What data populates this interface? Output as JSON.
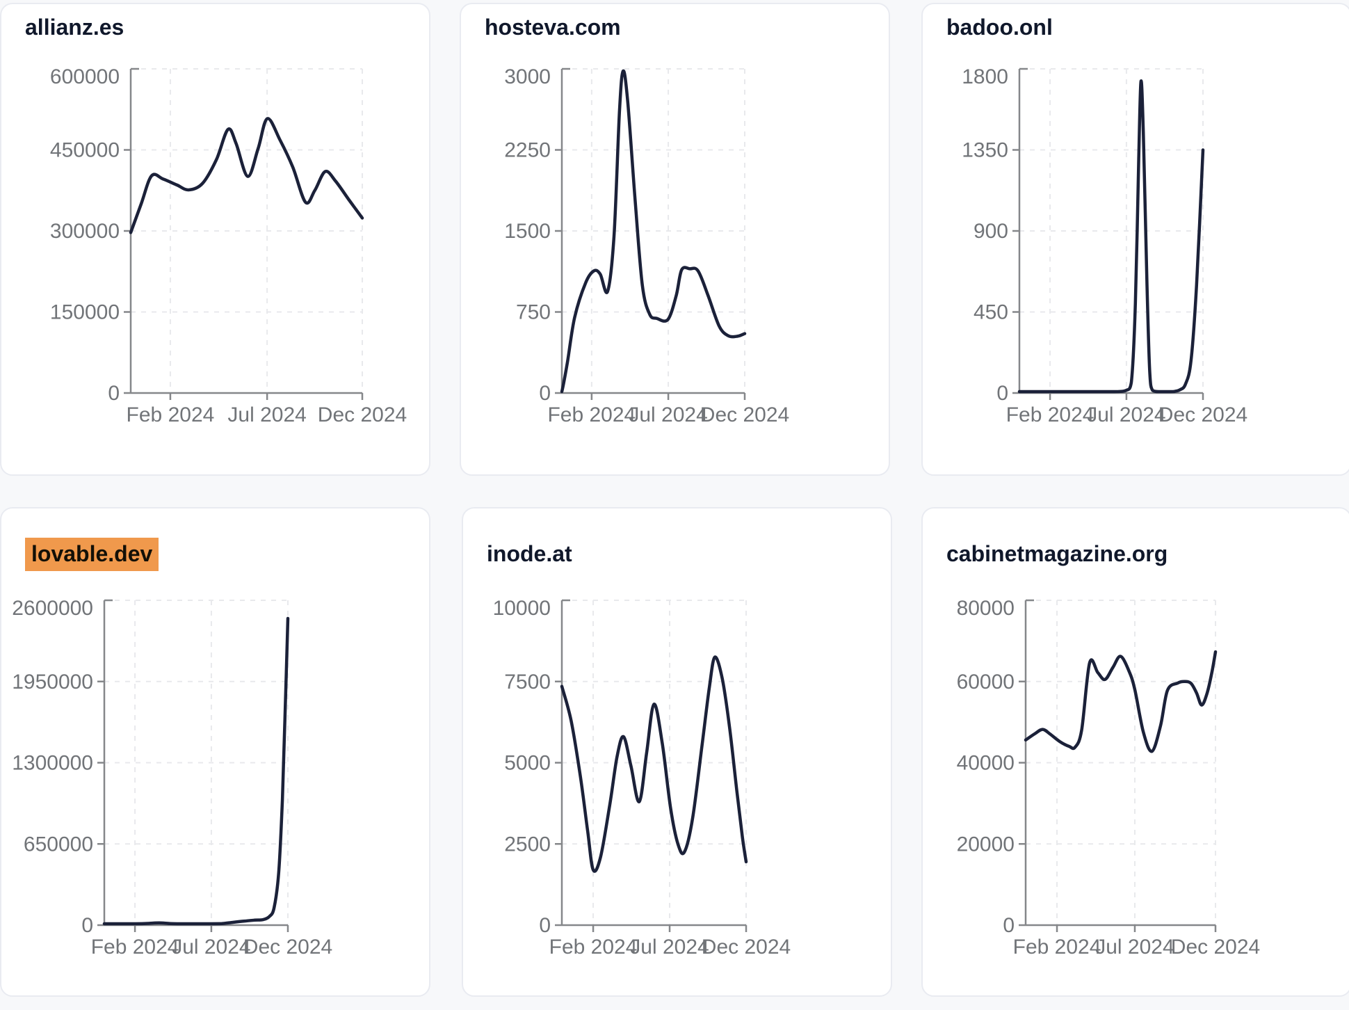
{
  "page": {
    "description": "Dashboard grid of six domain traffic line charts, Dec 2023 - Dec 2024",
    "colors": {
      "line": "#1b2139",
      "axis": "#85878a",
      "tick_label": "#717478",
      "grid": "#e8e9ec",
      "card_background": "#ffffff",
      "page_background": "#f7f8fa",
      "highlight_accent": "#f0994c",
      "title_text": "#10182b"
    }
  },
  "chart_data": [
    {
      "type": "line",
      "title": "allianz.es",
      "highlighted": false,
      "ylim": [
        0,
        600000
      ],
      "y_ticks": [
        0,
        150000,
        300000,
        450000,
        600000
      ],
      "x_ticks": [
        {
          "label": "Feb 2024",
          "t": 0.171
        },
        {
          "label": "Jul 2024",
          "t": 0.589
        },
        {
          "label": "Dec 2024",
          "t": 1.0
        }
      ],
      "grid": true,
      "legend": "none",
      "points": [
        [
          0,
          297000
        ],
        [
          0.045,
          350000
        ],
        [
          0.09,
          402000
        ],
        [
          0.14,
          396000
        ],
        [
          0.2,
          385000
        ],
        [
          0.25,
          376000
        ],
        [
          0.31,
          388000
        ],
        [
          0.37,
          432000
        ],
        [
          0.42,
          488000
        ],
        [
          0.455,
          462000
        ],
        [
          0.505,
          401000
        ],
        [
          0.55,
          452000
        ],
        [
          0.59,
          508000
        ],
        [
          0.645,
          468000
        ],
        [
          0.7,
          418000
        ],
        [
          0.755,
          353000
        ],
        [
          0.795,
          375000
        ],
        [
          0.84,
          410000
        ],
        [
          0.885,
          392000
        ],
        [
          0.945,
          356000
        ],
        [
          1,
          324000
        ]
      ]
    },
    {
      "type": "line",
      "title": "hosteva.com",
      "highlighted": false,
      "ylim": [
        0,
        3000
      ],
      "y_ticks": [
        0,
        750,
        1500,
        2250,
        3000
      ],
      "x_ticks": [
        {
          "label": "Feb 2024",
          "t": 0.163
        },
        {
          "label": "Jul 2024",
          "t": 0.582
        },
        {
          "label": "Dec 2024",
          "t": 1.0
        }
      ],
      "grid": true,
      "legend": "none",
      "points": [
        [
          0,
          0
        ],
        [
          0.03,
          280
        ],
        [
          0.07,
          700
        ],
        [
          0.13,
          1020
        ],
        [
          0.175,
          1130
        ],
        [
          0.21,
          1100
        ],
        [
          0.25,
          940
        ],
        [
          0.285,
          1450
        ],
        [
          0.315,
          2600
        ],
        [
          0.335,
          2980
        ],
        [
          0.36,
          2700
        ],
        [
          0.4,
          1800
        ],
        [
          0.44,
          1000
        ],
        [
          0.48,
          730
        ],
        [
          0.52,
          690
        ],
        [
          0.58,
          680
        ],
        [
          0.625,
          900
        ],
        [
          0.655,
          1140
        ],
        [
          0.7,
          1150
        ],
        [
          0.745,
          1130
        ],
        [
          0.8,
          900
        ],
        [
          0.86,
          620
        ],
        [
          0.91,
          530
        ],
        [
          0.96,
          525
        ],
        [
          1,
          550
        ]
      ]
    },
    {
      "type": "line",
      "title": "badoo.onl",
      "highlighted": false,
      "ylim": [
        0,
        1800
      ],
      "y_ticks": [
        0,
        450,
        900,
        1350,
        1800
      ],
      "x_ticks": [
        {
          "label": "Feb 2024",
          "t": 0.167
        },
        {
          "label": "Jul 2024",
          "t": 0.583
        },
        {
          "label": "Dec 2024",
          "t": 1.0
        }
      ],
      "grid": true,
      "legend": "none",
      "points": [
        [
          0,
          6
        ],
        [
          0.08,
          5
        ],
        [
          0.16,
          6
        ],
        [
          0.24,
          5
        ],
        [
          0.32,
          6
        ],
        [
          0.4,
          5
        ],
        [
          0.48,
          7
        ],
        [
          0.54,
          8
        ],
        [
          0.58,
          14
        ],
        [
          0.61,
          60
        ],
        [
          0.632,
          500
        ],
        [
          0.65,
          1300
        ],
        [
          0.662,
          1730
        ],
        [
          0.675,
          1450
        ],
        [
          0.695,
          600
        ],
        [
          0.71,
          120
        ],
        [
          0.725,
          15
        ],
        [
          0.76,
          5
        ],
        [
          0.8,
          5
        ],
        [
          0.84,
          8
        ],
        [
          0.875,
          18
        ],
        [
          0.905,
          50
        ],
        [
          0.935,
          180
        ],
        [
          0.965,
          600
        ],
        [
          1,
          1350
        ]
      ]
    },
    {
      "type": "line",
      "title": "lovable.dev",
      "highlighted": true,
      "ylim": [
        0,
        2600000
      ],
      "y_ticks": [
        0,
        650000,
        1300000,
        1950000,
        2600000
      ],
      "x_ticks": [
        {
          "label": "Feb 2024",
          "t": 0.167
        },
        {
          "label": "Jul 2024",
          "t": 0.583
        },
        {
          "label": "Dec 2024",
          "t": 1.0
        }
      ],
      "grid": true,
      "legend": "none",
      "points": [
        [
          0,
          3000
        ],
        [
          0.08,
          4000
        ],
        [
          0.17,
          6000
        ],
        [
          0.24,
          14000
        ],
        [
          0.3,
          18000
        ],
        [
          0.36,
          12000
        ],
        [
          0.44,
          7000
        ],
        [
          0.52,
          5000
        ],
        [
          0.58,
          6000
        ],
        [
          0.64,
          12000
        ],
        [
          0.7,
          22000
        ],
        [
          0.76,
          32000
        ],
        [
          0.82,
          40000
        ],
        [
          0.865,
          44000
        ],
        [
          0.9,
          70000
        ],
        [
          0.925,
          140000
        ],
        [
          0.95,
          420000
        ],
        [
          0.97,
          1000000
        ],
        [
          0.985,
          1700000
        ],
        [
          1,
          2455000
        ]
      ]
    },
    {
      "type": "line",
      "title": "inode.at",
      "highlighted": false,
      "ylim": [
        0,
        10000
      ],
      "y_ticks": [
        0,
        2500,
        5000,
        7500,
        10000
      ],
      "x_ticks": [
        {
          "label": "Feb 2024",
          "t": 0.17
        },
        {
          "label": "Jul 2024",
          "t": 0.585
        },
        {
          "label": "Dec 2024",
          "t": 1.0
        }
      ],
      "grid": true,
      "legend": "none",
      "points": [
        [
          0,
          7350
        ],
        [
          0.05,
          6300
        ],
        [
          0.1,
          4600
        ],
        [
          0.14,
          2900
        ],
        [
          0.17,
          1700
        ],
        [
          0.21,
          2100
        ],
        [
          0.26,
          3700
        ],
        [
          0.3,
          5200
        ],
        [
          0.335,
          5800
        ],
        [
          0.375,
          4900
        ],
        [
          0.42,
          3800
        ],
        [
          0.46,
          5300
        ],
        [
          0.5,
          6800
        ],
        [
          0.545,
          5600
        ],
        [
          0.59,
          3600
        ],
        [
          0.63,
          2500
        ],
        [
          0.665,
          2250
        ],
        [
          0.71,
          3300
        ],
        [
          0.76,
          5500
        ],
        [
          0.8,
          7300
        ],
        [
          0.83,
          8250
        ],
        [
          0.87,
          7600
        ],
        [
          0.91,
          6100
        ],
        [
          0.95,
          4100
        ],
        [
          0.98,
          2700
        ],
        [
          1,
          1950
        ]
      ]
    },
    {
      "type": "line",
      "title": "cabinetmagazine.org",
      "highlighted": false,
      "ylim": [
        0,
        80000
      ],
      "y_ticks": [
        0,
        20000,
        40000,
        60000,
        80000
      ],
      "x_ticks": [
        {
          "label": "Feb 2024",
          "t": 0.165
        },
        {
          "label": "Jul 2024",
          "t": 0.575
        },
        {
          "label": "Dec 2024",
          "t": 1.0
        }
      ],
      "grid": true,
      "legend": "none",
      "points": [
        [
          0,
          45600
        ],
        [
          0.05,
          47200
        ],
        [
          0.09,
          48200
        ],
        [
          0.13,
          47000
        ],
        [
          0.18,
          45200
        ],
        [
          0.23,
          44000
        ],
        [
          0.26,
          43800
        ],
        [
          0.295,
          48000
        ],
        [
          0.337,
          64600
        ],
        [
          0.38,
          62200
        ],
        [
          0.418,
          60500
        ],
        [
          0.46,
          63500
        ],
        [
          0.5,
          66200
        ],
        [
          0.545,
          62500
        ],
        [
          0.575,
          58000
        ],
        [
          0.62,
          47500
        ],
        [
          0.665,
          42800
        ],
        [
          0.71,
          49000
        ],
        [
          0.747,
          57800
        ],
        [
          0.8,
          59600
        ],
        [
          0.835,
          60000
        ],
        [
          0.87,
          59600
        ],
        [
          0.9,
          57200
        ],
        [
          0.927,
          54200
        ],
        [
          0.955,
          57000
        ],
        [
          0.98,
          62000
        ],
        [
          1,
          67300
        ]
      ]
    }
  ]
}
